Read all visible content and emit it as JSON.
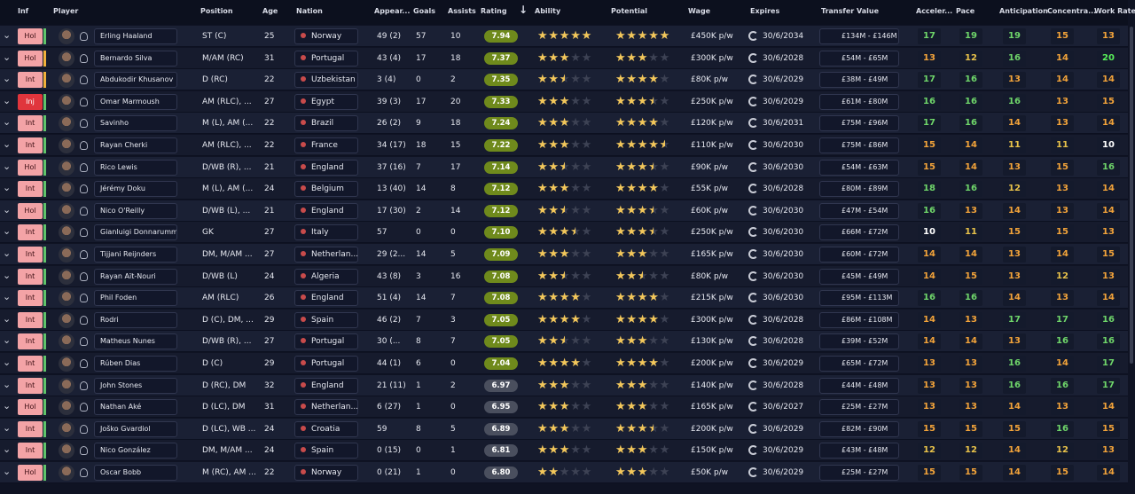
{
  "header": {
    "columns": [
      "Inf",
      "Player",
      "Position",
      "Age",
      "Nation",
      "Appear...",
      "Goals",
      "Assists",
      "Rating",
      "Ability",
      "Potential",
      "Wage",
      "Expires",
      "Transfer Value",
      "Acceler...",
      "Pace",
      "Anticipation",
      "Concentra...",
      "Work Rate"
    ]
  },
  "rows": [
    {
      "inf": "Hol",
      "player": "Erling Haaland",
      "position": "ST (C)",
      "age": 25,
      "nation": "Norway",
      "appearances": "49 (2)",
      "goals": 57,
      "assists": 10,
      "rating": "7.94",
      "ability": 5,
      "potential": 5,
      "wage": "£450K p/w",
      "expires": "30/6/2034",
      "transfer_value": "£134M - £146M",
      "acceleration": 17,
      "pace": 19,
      "anticipation": 19,
      "concentration": 15,
      "work_rate": 13
    },
    {
      "inf": "Hol",
      "player": "Bernardo Silva",
      "position": "M/AM (RC)",
      "age": 31,
      "nation": "Portugal",
      "appearances": "43 (4)",
      "goals": 17,
      "assists": 18,
      "rating": "7.37",
      "ability": 3,
      "potential": 3,
      "wage": "£300K p/w",
      "expires": "30/6/2028",
      "transfer_value": "£54M - £65M",
      "acceleration": 13,
      "pace": 12,
      "anticipation": 16,
      "concentration": 14,
      "work_rate": 20
    },
    {
      "inf": "Int",
      "player": "Abdukodir Khusanov",
      "position": "D (RC)",
      "age": 22,
      "nation": "Uzbekistan",
      "appearances": "3 (4)",
      "goals": 0,
      "assists": 2,
      "rating": "7.35",
      "ability": 2.5,
      "potential": 4,
      "wage": "£80K p/w",
      "expires": "30/6/2029",
      "transfer_value": "£38M - £49M",
      "acceleration": 17,
      "pace": 16,
      "anticipation": 13,
      "concentration": 14,
      "work_rate": 14
    },
    {
      "inf": "Inj",
      "player": "Omar Marmoush",
      "position": "AM (RLC), ...",
      "age": 27,
      "nation": "Egypt",
      "appearances": "39 (3)",
      "goals": 17,
      "assists": 20,
      "rating": "7.33",
      "ability": 3,
      "potential": 3.5,
      "wage": "£250K p/w",
      "expires": "30/6/2029",
      "transfer_value": "£61M - £80M",
      "acceleration": 16,
      "pace": 16,
      "anticipation": 16,
      "concentration": 13,
      "work_rate": 15
    },
    {
      "inf": "Int",
      "player": "Savinho",
      "position": "M (L), AM (...",
      "age": 22,
      "nation": "Brazil",
      "appearances": "26 (2)",
      "goals": 9,
      "assists": 18,
      "rating": "7.24",
      "ability": 3,
      "potential": 4,
      "wage": "£120K p/w",
      "expires": "30/6/2031",
      "transfer_value": "£75M - £96M",
      "acceleration": 17,
      "pace": 16,
      "anticipation": 14,
      "concentration": 13,
      "work_rate": 14
    },
    {
      "inf": "Int",
      "player": "Rayan Cherki",
      "position": "AM (RLC), ...",
      "age": 22,
      "nation": "France",
      "appearances": "34 (17)",
      "goals": 18,
      "assists": 15,
      "rating": "7.22",
      "ability": 3,
      "potential": 4.5,
      "wage": "£110K p/w",
      "expires": "30/6/2030",
      "transfer_value": "£75M - £86M",
      "acceleration": 15,
      "pace": 14,
      "anticipation": 11,
      "concentration": 11,
      "work_rate": 10
    },
    {
      "inf": "Hol",
      "player": "Rico Lewis",
      "position": "D/WB (R), ...",
      "age": 21,
      "nation": "England",
      "appearances": "37 (16)",
      "goals": 7,
      "assists": 17,
      "rating": "7.14",
      "ability": 2.5,
      "potential": 3.5,
      "wage": "£90K p/w",
      "expires": "30/6/2030",
      "transfer_value": "£54M - £63M",
      "acceleration": 15,
      "pace": 14,
      "anticipation": 13,
      "concentration": 15,
      "work_rate": 16
    },
    {
      "inf": "Int",
      "player": "Jérémy Doku",
      "position": "M (L), AM (...",
      "age": 24,
      "nation": "Belgium",
      "appearances": "13 (40)",
      "goals": 14,
      "assists": 8,
      "rating": "7.12",
      "ability": 3,
      "potential": 4,
      "wage": "£55K p/w",
      "expires": "30/6/2028",
      "transfer_value": "£80M - £89M",
      "acceleration": 18,
      "pace": 16,
      "anticipation": 12,
      "concentration": 13,
      "work_rate": 14
    },
    {
      "inf": "Hol",
      "player": "Nico O'Reilly",
      "position": "D/WB (L), ...",
      "age": 21,
      "nation": "England",
      "appearances": "17 (30)",
      "goals": 2,
      "assists": 14,
      "rating": "7.12",
      "ability": 2.5,
      "potential": 3.5,
      "wage": "£60K p/w",
      "expires": "30/6/2030",
      "transfer_value": "£47M - £54M",
      "acceleration": 16,
      "pace": 13,
      "anticipation": 14,
      "concentration": 13,
      "work_rate": 14
    },
    {
      "inf": "Int",
      "player": "Gianluigi Donnarumma",
      "position": "GK",
      "age": 27,
      "nation": "Italy",
      "appearances": "57",
      "goals": 0,
      "assists": 0,
      "rating": "7.10",
      "ability": 3.5,
      "potential": 3.5,
      "wage": "£250K p/w",
      "expires": "30/6/2030",
      "transfer_value": "£66M - £72M",
      "acceleration": 10,
      "pace": 11,
      "anticipation": 15,
      "concentration": 15,
      "work_rate": 13
    },
    {
      "inf": "Int",
      "player": "Tijjani Reijnders",
      "position": "DM, M/AM ...",
      "age": 27,
      "nation": "Netherlan...",
      "appearances": "29 (2...",
      "goals": 14,
      "assists": 5,
      "rating": "7.09",
      "ability": 3,
      "potential": 3,
      "wage": "£165K p/w",
      "expires": "30/6/2030",
      "transfer_value": "£60M - £72M",
      "acceleration": 14,
      "pace": 14,
      "anticipation": 13,
      "concentration": 14,
      "work_rate": 15
    },
    {
      "inf": "Int",
      "player": "Rayan Aït-Nouri",
      "position": "D/WB (L)",
      "age": 24,
      "nation": "Algeria",
      "appearances": "43 (8)",
      "goals": 3,
      "assists": 16,
      "rating": "7.08",
      "ability": 2.5,
      "potential": 2.5,
      "wage": "£80K p/w",
      "expires": "30/6/2030",
      "transfer_value": "£45M - £49M",
      "acceleration": 14,
      "pace": 15,
      "anticipation": 13,
      "concentration": 12,
      "work_rate": 13
    },
    {
      "inf": "Int",
      "player": "Phil Foden",
      "position": "AM (RLC)",
      "age": 26,
      "nation": "England",
      "appearances": "51 (4)",
      "goals": 14,
      "assists": 7,
      "rating": "7.08",
      "ability": 4,
      "potential": 4,
      "wage": "£215K p/w",
      "expires": "30/6/2030",
      "transfer_value": "£95M - £113M",
      "acceleration": 16,
      "pace": 16,
      "anticipation": 14,
      "concentration": 13,
      "work_rate": 14
    },
    {
      "inf": "Int",
      "player": "Rodri",
      "position": "D (C), DM, ...",
      "age": 29,
      "nation": "Spain",
      "appearances": "46 (2)",
      "goals": 7,
      "assists": 3,
      "rating": "7.05",
      "ability": 4,
      "potential": 4,
      "wage": "£300K p/w",
      "expires": "30/6/2028",
      "transfer_value": "£86M - £108M",
      "acceleration": 14,
      "pace": 13,
      "anticipation": 17,
      "concentration": 17,
      "work_rate": 16
    },
    {
      "inf": "Int",
      "player": "Matheus Nunes",
      "position": "D/WB (R), ...",
      "age": 27,
      "nation": "Portugal",
      "appearances": "30 (...",
      "goals": 8,
      "assists": 7,
      "rating": "7.05",
      "ability": 2.5,
      "potential": 3,
      "wage": "£130K p/w",
      "expires": "30/6/2028",
      "transfer_value": "£39M - £52M",
      "acceleration": 14,
      "pace": 14,
      "anticipation": 13,
      "concentration": 16,
      "work_rate": 16
    },
    {
      "inf": "Int",
      "player": "Rúben Dias",
      "position": "D (C)",
      "age": 29,
      "nation": "Portugal",
      "appearances": "44 (1)",
      "goals": 6,
      "assists": 0,
      "rating": "7.04",
      "ability": 4,
      "potential": 4,
      "wage": "£200K p/w",
      "expires": "30/6/2029",
      "transfer_value": "£65M - £72M",
      "acceleration": 13,
      "pace": 13,
      "anticipation": 16,
      "concentration": 14,
      "work_rate": 17
    },
    {
      "inf": "Int",
      "player": "John Stones",
      "position": "D (RC), DM",
      "age": 32,
      "nation": "England",
      "appearances": "21 (11)",
      "goals": 1,
      "assists": 2,
      "rating": "6.97",
      "ability": 3,
      "potential": 3,
      "wage": "£140K p/w",
      "expires": "30/6/2028",
      "transfer_value": "£44M - £48M",
      "acceleration": 13,
      "pace": 13,
      "anticipation": 16,
      "concentration": 16,
      "work_rate": 17
    },
    {
      "inf": "Hol",
      "player": "Nathan Aké",
      "position": "D (LC), DM",
      "age": 31,
      "nation": "Netherlan...",
      "appearances": "6 (27)",
      "goals": 1,
      "assists": 0,
      "rating": "6.95",
      "ability": 3,
      "potential": 3,
      "wage": "£165K p/w",
      "expires": "30/6/2027",
      "transfer_value": "£25M - £27M",
      "acceleration": 13,
      "pace": 13,
      "anticipation": 14,
      "concentration": 13,
      "work_rate": 14
    },
    {
      "inf": "Int",
      "player": "Joško Gvardiol",
      "position": "D (LC), WB ...",
      "age": 24,
      "nation": "Croatia",
      "appearances": "59",
      "goals": 8,
      "assists": 5,
      "rating": "6.89",
      "ability": 3,
      "potential": 3.5,
      "wage": "£200K p/w",
      "expires": "30/6/2029",
      "transfer_value": "£82M - £90M",
      "acceleration": 15,
      "pace": 15,
      "anticipation": 15,
      "concentration": 16,
      "work_rate": 15
    },
    {
      "inf": "Int",
      "player": "Nico González",
      "position": "DM, M/AM ...",
      "age": 24,
      "nation": "Spain",
      "appearances": "0 (15)",
      "goals": 0,
      "assists": 1,
      "rating": "6.81",
      "ability": 3,
      "potential": 3,
      "wage": "£150K p/w",
      "expires": "30/6/2029",
      "transfer_value": "£43M - £48M",
      "acceleration": 12,
      "pace": 12,
      "anticipation": 14,
      "concentration": 12,
      "work_rate": 13
    },
    {
      "inf": "Hol",
      "player": "Oscar Bobb",
      "position": "M (RC), AM ...",
      "age": 22,
      "nation": "Norway",
      "appearances": "0 (21)",
      "goals": 1,
      "assists": 0,
      "rating": "6.80",
      "ability": 2,
      "potential": 3,
      "wage": "£50K p/w",
      "expires": "30/6/2029",
      "transfer_value": "£25M - £27M",
      "acceleration": 15,
      "pace": 15,
      "anticipation": 14,
      "concentration": 15,
      "work_rate": 14
    }
  ]
}
